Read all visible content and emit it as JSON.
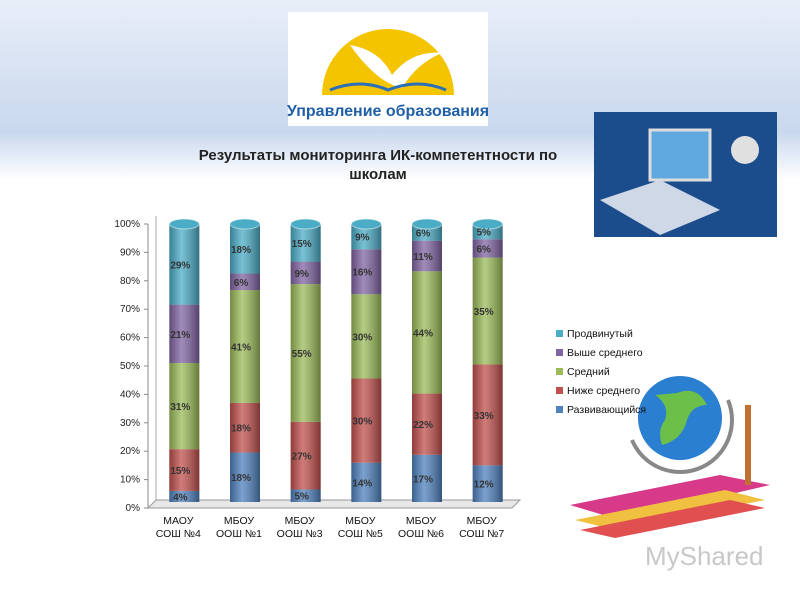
{
  "header": {
    "logo_text": "Управление образования"
  },
  "watermark": "MyShared",
  "chart_data": {
    "type": "bar",
    "stacking": "percent",
    "title": "Результаты мониторинга ИК-компетентности по школам",
    "categories": [
      "МАОУ СОШ №4",
      "МБОУ ООШ №1",
      "МБОУ ООШ №3",
      "МБОУ СОШ №5",
      "МБОУ ООШ №6",
      "МБОУ СОШ №7"
    ],
    "series": [
      {
        "name": "Развивающийся",
        "color": "#4f81bd",
        "values": [
          4,
          18,
          5,
          14,
          17,
          12
        ],
        "value_labels": [
          "4%",
          "18%",
          "5%",
          "14%",
          "17%",
          "12%"
        ]
      },
      {
        "name": "Ниже среднего",
        "color": "#c0504d",
        "values": [
          15,
          18,
          27,
          30,
          22,
          33
        ],
        "value_labels": [
          "15%",
          "18%",
          "27%",
          "30%",
          "22%",
          "33%"
        ]
      },
      {
        "name": "Средний",
        "color": "#9bbb59",
        "values": [
          31,
          41,
          55,
          30,
          44,
          35
        ],
        "value_labels": [
          "31%",
          "41%",
          "55%",
          "30%",
          "44%",
          "35%"
        ]
      },
      {
        "name": "Выше среднего",
        "color": "#8064a2",
        "values": [
          21,
          6,
          9,
          16,
          11,
          6
        ],
        "value_labels": [
          "21%",
          "6%",
          "9%",
          "16%",
          "11%",
          "6%"
        ]
      },
      {
        "name": "Продвинутый",
        "color": "#4bacc6",
        "values": [
          29,
          18,
          15,
          9,
          6,
          5
        ],
        "value_labels": [
          "29%",
          "18%",
          "15%",
          "9%",
          "6%",
          "5%"
        ]
      }
    ],
    "ylim": [
      0,
      100
    ],
    "yticks": [
      {
        "value": 0,
        "label": "0%"
      },
      {
        "value": 10,
        "label": "10%"
      },
      {
        "value": 20,
        "label": "20%"
      },
      {
        "value": 30,
        "label": "30%"
      },
      {
        "value": 40,
        "label": "40%"
      },
      {
        "value": 50,
        "label": "50%"
      },
      {
        "value": 60,
        "label": "60%"
      },
      {
        "value": 70,
        "label": "70%"
      },
      {
        "value": 80,
        "label": "80%"
      },
      {
        "value": 90,
        "label": "90%"
      },
      {
        "value": 100,
        "label": "100%"
      }
    ],
    "grid": false,
    "legend": "right"
  }
}
